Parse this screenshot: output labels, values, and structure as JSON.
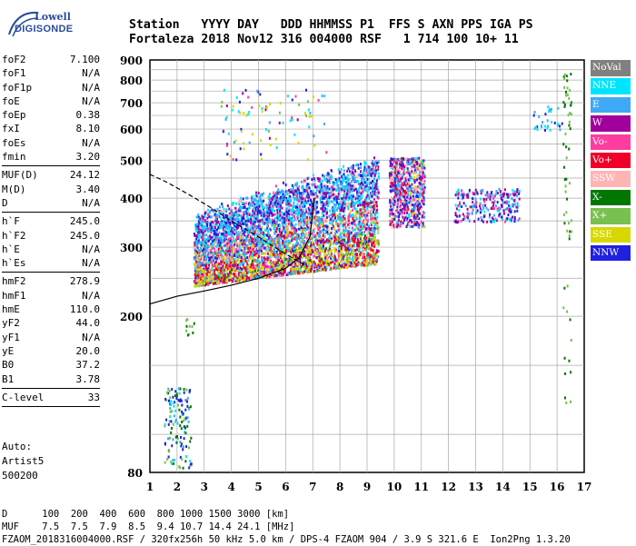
{
  "logo": {
    "line1": "Lowell",
    "line2": "DIGISONDE"
  },
  "header": {
    "line1": "Station   YYYY DAY   DDD HHMMSS P1  FFS S AXN PPS IGA PS",
    "line2": "Fortaleza 2018 Nov12 316 004000 RSF   1 714 100 10+ 11"
  },
  "params": [
    [
      {
        "k": "foF2",
        "v": "7.100"
      },
      {
        "k": "foF1",
        "v": "N/A"
      },
      {
        "k": "foF1p",
        "v": "N/A"
      },
      {
        "k": "foE",
        "v": "N/A"
      },
      {
        "k": "foEp",
        "v": "0.38"
      },
      {
        "k": "fxI",
        "v": "8.10"
      },
      {
        "k": "foEs",
        "v": "N/A"
      },
      {
        "k": "fmin",
        "v": "3.20"
      }
    ],
    [
      {
        "k": "MUF(D)",
        "v": "24.12"
      },
      {
        "k": "M(D)",
        "v": "3.40"
      },
      {
        "k": "D",
        "v": "N/A"
      }
    ],
    [
      {
        "k": "h`F",
        "v": "245.0"
      },
      {
        "k": "h`F2",
        "v": "245.0"
      },
      {
        "k": "h`E",
        "v": "N/A"
      },
      {
        "k": "h`Es",
        "v": "N/A"
      }
    ],
    [
      {
        "k": "hmF2",
        "v": "278.9"
      },
      {
        "k": "hmF1",
        "v": "N/A"
      },
      {
        "k": "hmE",
        "v": "110.0"
      },
      {
        "k": "yF2",
        "v": "44.0"
      },
      {
        "k": "yF1",
        "v": "N/A"
      },
      {
        "k": "yE",
        "v": "20.0"
      },
      {
        "k": "B0",
        "v": "37.2"
      },
      {
        "k": "B1",
        "v": "3.78"
      }
    ],
    [
      {
        "k": "C-level",
        "v": "33"
      }
    ]
  ],
  "auto": {
    "line1": "Auto:",
    "line2": "Artist5",
    "line3": "500200"
  },
  "footer": {
    "line1": "D      100  200  400  600  800 1000 1500 3000 [km]",
    "line2": "MUF    7.5  7.5  7.9  8.5  9.4 10.7 14.4 24.1 [MHz]",
    "line3": "FZAOM_2018316004000.RSF / 320fx256h 50 kHz 5.0 km / DPS-4 FZAOM 904 / 3.9 S 321.6 E  Ion2Png 1.3.20"
  },
  "legend": [
    {
      "label": "NoVal",
      "color": "#808080"
    },
    {
      "label": "NNE",
      "color": "#00e5ff"
    },
    {
      "label": "E",
      "color": "#3fa9f5"
    },
    {
      "label": "W",
      "color": "#a0009c"
    },
    {
      "label": "Vo-",
      "color": "#ff3ca0"
    },
    {
      "label": "Vo+",
      "color": "#f00028"
    },
    {
      "label": "SSW",
      "color": "#ffb4b4"
    },
    {
      "label": "X-",
      "color": "#007800"
    },
    {
      "label": "X+",
      "color": "#78c050"
    },
    {
      "label": "SSE",
      "color": "#d8d800"
    },
    {
      "label": "NNW",
      "color": "#2020e0"
    }
  ],
  "chart_data": {
    "type": "scatter",
    "xlabel": "",
    "ylabel": "",
    "xlim": [
      1,
      17
    ],
    "ylim": [
      80,
      900
    ],
    "y_scale": "log",
    "x_ticks": [
      "1",
      "2",
      "3",
      "4",
      "5",
      "6",
      "7",
      "8",
      "9",
      "10",
      "11",
      "12",
      "13",
      "14",
      "15",
      "16",
      "17"
    ],
    "y_ticks": [
      "80",
      "200",
      "300",
      "400",
      "500",
      "600",
      "700",
      "800",
      "900"
    ],
    "y_tick_values": [
      80,
      200,
      300,
      400,
      500,
      600,
      700,
      800,
      900
    ],
    "grid": true,
    "series": [
      {
        "name": "O-trace main F-region cluster",
        "x_range": [
          2.6,
          9.4
        ],
        "y_range": [
          240,
          480
        ]
      },
      {
        "name": "F-region upper cluster",
        "x_range": [
          9.8,
          11.2
        ],
        "y_range": [
          340,
          510
        ]
      },
      {
        "name": "E-region echoes",
        "x_range": [
          1.5,
          2.6
        ],
        "y_range": [
          82,
          135
        ]
      },
      {
        "name": "Spread F",
        "x_range": [
          12.2,
          14.6
        ],
        "y_range": [
          340,
          430
        ]
      }
    ],
    "dashed_curve": [
      [
        1,
        460
      ],
      [
        1.6,
        440
      ],
      [
        2.4,
        410
      ],
      [
        3.2,
        380
      ],
      [
        4.0,
        350
      ],
      [
        4.8,
        325
      ],
      [
        5.6,
        300
      ],
      [
        6.3,
        280
      ],
      [
        6.8,
        268
      ]
    ],
    "solid_curve": [
      [
        1,
        215
      ],
      [
        2,
        225
      ],
      [
        3,
        232
      ],
      [
        4,
        240
      ],
      [
        5,
        250
      ],
      [
        6,
        265
      ],
      [
        6.5,
        282
      ],
      [
        6.9,
        320
      ],
      [
        7.05,
        400
      ]
    ]
  }
}
